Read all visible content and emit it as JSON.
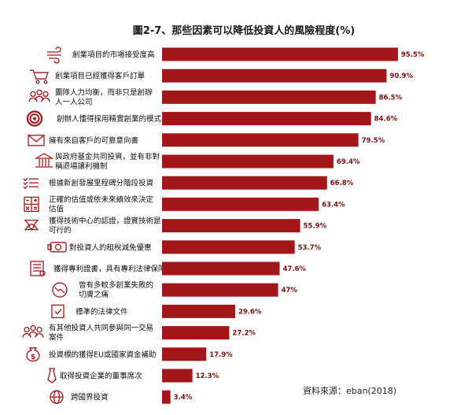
{
  "chart_data": {
    "type": "bar",
    "orientation": "horizontal",
    "title": "圖2-7、那些因素可以降低投資人的風險程度(%)",
    "source": "資料來源：eban(2018)",
    "xlim": [
      0,
      100
    ],
    "grid": false,
    "bar_color": "#a3161a",
    "value_color": "#7a0f12",
    "categories": [
      {
        "lines": [
          "創業項目的市場接受度高"
        ],
        "icon": "wind-icon"
      },
      {
        "lines": [
          "創業項目已經獲得客戶訂單"
        ],
        "icon": "shopping-cart-icon"
      },
      {
        "lines": [
          "團隊人力均衡，而非只是創辦",
          "人一人公司"
        ],
        "icon": "team-icon"
      },
      {
        "lines": [
          "創辦人懂得採用精實創業的模式"
        ],
        "icon": "target-icon"
      },
      {
        "lines": [
          "擁有來自客戶的可靠意向書"
        ],
        "icon": "envelope-icon"
      },
      {
        "lines": [
          "與政府基金共同投資，並有非對",
          "稱退場讓利機制"
        ],
        "icon": "government-building-icon"
      },
      {
        "lines": [
          "根據新創發展里程碑分階段投資"
        ],
        "icon": "checklist-icon"
      },
      {
        "lines": [
          "正確的估值或依未來績效來決定",
          "估值"
        ],
        "icon": "calculator-icon"
      },
      {
        "lines": [
          "獲得技術中心的認證，證實技術是",
          "可行的"
        ],
        "icon": "certificate-icon"
      },
      {
        "lines": [
          "對投資人的租稅減免優惠"
        ],
        "icon": "money-icon"
      },
      {
        "lines": [
          "獲得專利證書，具有專利法律保障"
        ],
        "icon": "patent-document-icon"
      },
      {
        "lines": [
          "曾有多較多創業失敗的",
          "切膚之痛"
        ],
        "icon": "downtrend-icon"
      },
      {
        "lines": [
          "標準的法律文件"
        ],
        "icon": "legal-document-icon"
      },
      {
        "lines": [
          "有其他投資人共同參與同一交易",
          "案件"
        ],
        "icon": "investors-icon"
      },
      {
        "lines": [
          "投資標的獲得EU或國家資金補助"
        ],
        "icon": "money-bag-icon"
      },
      {
        "lines": [
          "取得投資企業的董事席次"
        ],
        "icon": "necktie-icon"
      },
      {
        "lines": [
          "跨國界投資"
        ],
        "icon": "globe-icon"
      }
    ],
    "values": [
      95.5,
      90.9,
      86.5,
      84.6,
      79.5,
      69.4,
      66.8,
      63.4,
      55.9,
      53.7,
      47.6,
      47,
      29.6,
      27.2,
      17.9,
      12.3,
      3.4
    ],
    "value_labels": [
      "95.5%",
      "90.9%",
      "86.5%",
      "84.6%",
      "79.5%",
      "69.4%",
      "66.8%",
      "63.4%",
      "55.9%",
      "53.7%",
      "47.6%",
      "47%",
      "29.6%",
      "27.2%",
      "17.9%",
      "12.3%",
      "3.4%"
    ]
  }
}
